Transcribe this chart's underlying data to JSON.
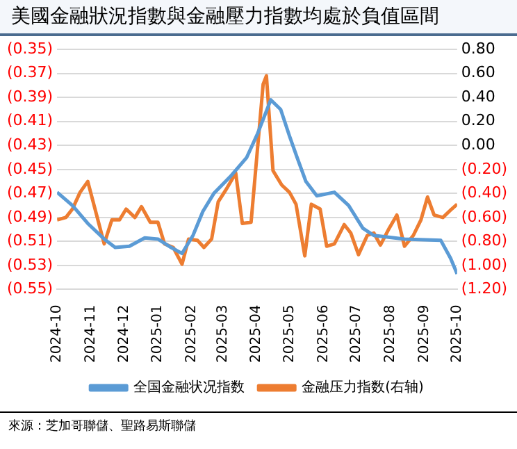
{
  "chart_data": {
    "type": "line",
    "title": "美國金融狀況指數與金融壓力指數均處於負值區間",
    "annotations": [
      "來源：芝加哥聯儲、聖路易斯聯儲"
    ],
    "xlim": [
      "2024-10",
      "2025-10"
    ],
    "xticks": [
      "2024-10",
      "2024-11",
      "2024-12",
      "2025-01",
      "2025-02",
      "2025-03",
      "2025-04",
      "2025-05",
      "2025-06",
      "2025-07",
      "2025-08",
      "2025-09",
      "2025-10"
    ],
    "ylim": [
      -0.55,
      -0.35
    ],
    "yticks": [
      {
        "value": -0.55,
        "label": "(0.55)"
      },
      {
        "value": -0.53,
        "label": "(0.53)"
      },
      {
        "value": -0.51,
        "label": "(0.51)"
      },
      {
        "value": -0.49,
        "label": "(0.49)"
      },
      {
        "value": -0.47,
        "label": "(0.47)"
      },
      {
        "value": -0.45,
        "label": "(0.45)"
      },
      {
        "value": -0.43,
        "label": "(0.43)"
      },
      {
        "value": -0.41,
        "label": "(0.41)"
      },
      {
        "value": -0.39,
        "label": "(0.39)"
      },
      {
        "value": -0.37,
        "label": "(0.37)"
      },
      {
        "value": -0.35,
        "label": "(0.35)"
      }
    ],
    "y2lim": [
      -1.2,
      0.8
    ],
    "y2ticks": [
      {
        "value": -1.2,
        "label": "(1.20)"
      },
      {
        "value": -1,
        "label": "(1.00)"
      },
      {
        "value": -0.8,
        "label": "(0.80)"
      },
      {
        "value": -0.6,
        "label": "(0.60)"
      },
      {
        "value": -0.4,
        "label": "(0.40)"
      },
      {
        "value": -0.2,
        "label": "(0.20)"
      },
      {
        "value": 0,
        "label": "0.00"
      },
      {
        "value": 0.2,
        "label": "0.20"
      },
      {
        "value": 0.4,
        "label": "0.40"
      },
      {
        "value": 0.6,
        "label": "0.60"
      },
      {
        "value": 0.8,
        "label": "0.80"
      }
    ],
    "grid": "y",
    "legend": "bottom",
    "marker": "none",
    "line_style": "solid",
    "series": [
      {
        "name": "全国金融状况指数",
        "color": "#5b9bd5",
        "x": [
          "2024-10-01",
          "2024-10-15",
          "2024-10-29",
          "2024-11-13",
          "2024-11-23",
          "2024-12-06",
          "2024-12-20",
          "2025-01-01",
          "2025-01-13",
          "2025-01-23",
          "2025-02-02",
          "2025-02-11",
          "2025-02-21",
          "2025-03-09",
          "2025-03-23",
          "2025-04-02",
          "2025-04-14",
          "2025-04-23",
          "2025-05-01",
          "2025-05-08",
          "2025-05-16",
          "2025-05-26",
          "2025-06-11",
          "2025-06-24",
          "2025-07-07",
          "2025-07-17",
          "2025-08-14",
          "2025-09-16",
          "2025-09-25",
          "2025-10-01"
        ],
        "values": [
          -0.469,
          -0.48,
          -0.495,
          -0.508,
          -0.515,
          -0.514,
          -0.507,
          -0.508,
          -0.515,
          -0.52,
          -0.505,
          -0.485,
          -0.47,
          -0.455,
          -0.44,
          -0.42,
          -0.392,
          -0.4,
          -0.422,
          -0.44,
          -0.46,
          -0.472,
          -0.469,
          -0.48,
          -0.499,
          -0.505,
          -0.508,
          -0.509,
          -0.524,
          -0.537
        ]
      },
      {
        "name": "金融压力指数(右轴)",
        "color": "#ed7d31",
        "axis": "y2",
        "x": [
          "2024-10-01",
          "2024-10-09",
          "2024-10-15",
          "2024-10-22",
          "2024-10-29",
          "2024-11-13",
          "2024-11-20",
          "2024-11-27",
          "2024-12-03",
          "2024-12-11",
          "2024-12-17",
          "2024-12-25",
          "2025-01-01",
          "2025-01-07",
          "2025-01-15",
          "2025-01-23",
          "2025-01-29",
          "2025-02-06",
          "2025-02-12",
          "2025-02-19",
          "2025-02-25",
          "2025-03-04",
          "2025-03-13",
          "2025-03-19",
          "2025-03-27",
          "2025-04-07",
          "2025-04-10",
          "2025-04-16",
          "2025-04-24",
          "2025-05-01",
          "2025-05-07",
          "2025-05-15",
          "2025-05-21",
          "2025-05-29",
          "2025-06-04",
          "2025-06-11",
          "2025-06-20",
          "2025-06-26",
          "2025-07-03",
          "2025-07-11",
          "2025-07-17",
          "2025-07-23",
          "2025-07-31",
          "2025-08-07",
          "2025-08-14",
          "2025-08-22",
          "2025-08-29",
          "2025-09-04",
          "2025-09-10",
          "2025-09-18",
          "2025-09-26",
          "2025-10-01"
        ],
        "values": [
          -0.62,
          -0.6,
          -0.53,
          -0.39,
          -0.3,
          -0.82,
          -0.62,
          -0.62,
          -0.53,
          -0.6,
          -0.51,
          -0.64,
          -0.64,
          -0.82,
          -0.85,
          -0.99,
          -0.78,
          -0.79,
          -0.85,
          -0.78,
          -0.47,
          -0.37,
          -0.23,
          -0.65,
          -0.64,
          0.51,
          0.58,
          -0.21,
          -0.33,
          -0.39,
          -0.49,
          -0.92,
          -0.49,
          -0.53,
          -0.84,
          -0.82,
          -0.66,
          -0.73,
          -0.91,
          -0.75,
          -0.73,
          -0.83,
          -0.69,
          -0.58,
          -0.84,
          -0.75,
          -0.62,
          -0.43,
          -0.58,
          -0.6,
          -0.53,
          -0.49
        ]
      }
    ]
  }
}
